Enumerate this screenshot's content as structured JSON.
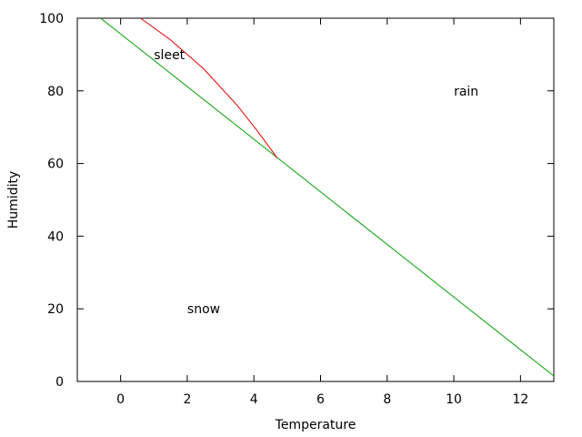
{
  "chart_data": {
    "type": "line",
    "title": "",
    "xlabel": "Temperature",
    "ylabel": "Humidity",
    "xlim": [
      -1.3,
      13
    ],
    "ylim": [
      0,
      100
    ],
    "x_ticks": [
      0,
      2,
      4,
      6,
      8,
      10,
      12
    ],
    "y_ticks": [
      0,
      20,
      40,
      60,
      80,
      100
    ],
    "grid": false,
    "legend": "none",
    "series": [
      {
        "color": "#00a000",
        "points": [
          [
            -0.6,
            100
          ],
          [
            13,
            1.5
          ]
        ]
      },
      {
        "color": "#e00000",
        "points": [
          [
            0.6,
            100
          ],
          [
            1.5,
            94
          ],
          [
            2.5,
            86
          ],
          [
            3.5,
            76
          ],
          [
            4.1,
            69
          ],
          [
            4.7,
            61.5
          ]
        ]
      }
    ],
    "annotations": [
      {
        "text": "sleet",
        "x": 1.0,
        "y": 90
      },
      {
        "text": "rain",
        "x": 10.0,
        "y": 80
      },
      {
        "text": "snow",
        "x": 2.0,
        "y": 20
      }
    ]
  }
}
